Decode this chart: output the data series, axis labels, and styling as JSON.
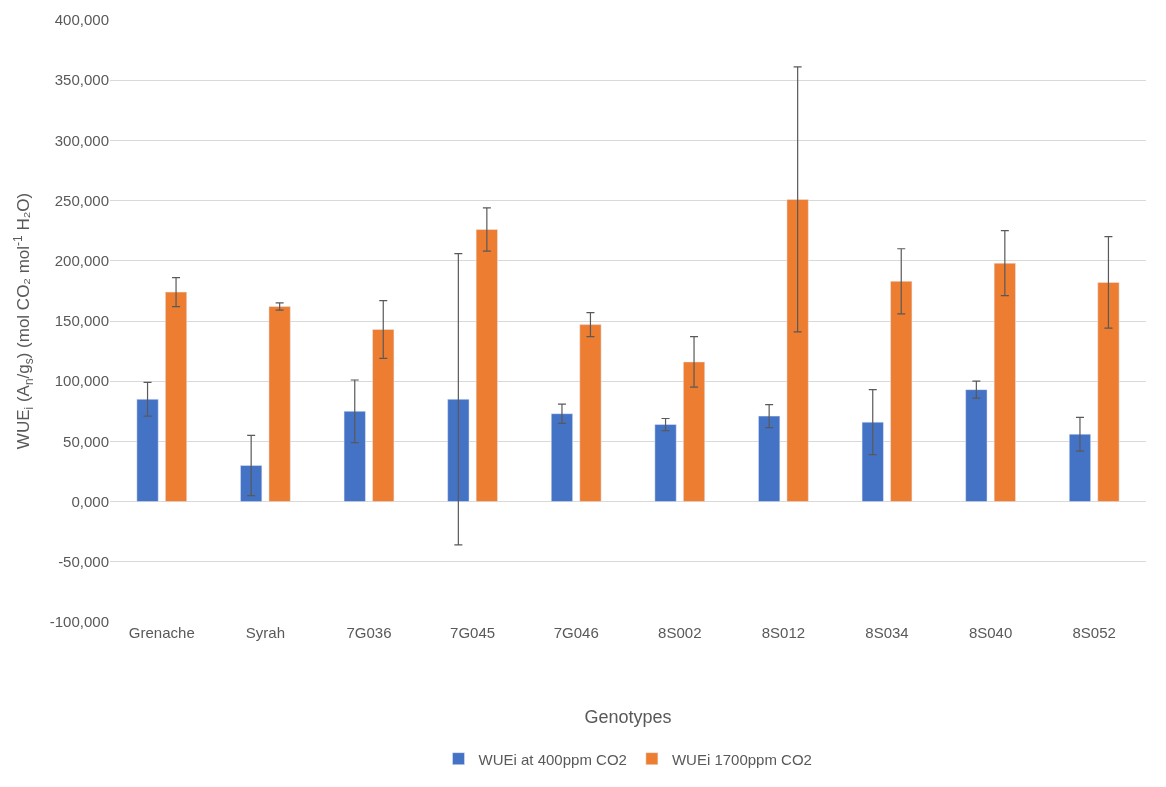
{
  "chart_data": {
    "type": "bar",
    "xlabel": "Genotypes",
    "ylabel": "WUE$_{i}$ (A$_{n}$/g$_{s}$) (mol CO₂ mol$^{-1}$ H₂O)",
    "categories": [
      "Grenache",
      "Syrah",
      "7G036",
      "7G045",
      "7G046",
      "8S002",
      "8S012",
      "8S034",
      "8S040",
      "8S052"
    ],
    "series": [
      {
        "name": "WUEi at 400ppm CO2",
        "color": "#4472c4",
        "values": [
          85000,
          30000,
          75000,
          85000,
          73000,
          64000,
          71000,
          66000,
          93000,
          56000
        ],
        "errors": [
          14000,
          25000,
          26000,
          121000,
          8000,
          5000,
          9500,
          27000,
          7000,
          14000
        ]
      },
      {
        "name": "WUEi 1700ppm CO2",
        "color": "#ed7d31",
        "values": [
          174000,
          162000,
          143000,
          226000,
          147000,
          116000,
          251000,
          183000,
          198000,
          182000
        ],
        "errors": [
          12000,
          3000,
          24000,
          18000,
          10000,
          21000,
          110000,
          27000,
          27000,
          38000
        ]
      }
    ],
    "ylim": [
      -100000,
      400000
    ],
    "yticks": [
      {
        "value": -100000,
        "label": "-100,000"
      },
      {
        "value": -50000,
        "label": "-50,000"
      },
      {
        "value": 0,
        "label": "0,000"
      },
      {
        "value": 50000,
        "label": "50,000"
      },
      {
        "value": 100000,
        "label": "100,000"
      },
      {
        "value": 150000,
        "label": "150,000"
      },
      {
        "value": 200000,
        "label": "200,000"
      },
      {
        "value": 250000,
        "label": "250,000"
      },
      {
        "value": 300000,
        "label": "300,000"
      },
      {
        "value": 350000,
        "label": "350,000"
      },
      {
        "value": 400000,
        "label": "400,000"
      }
    ],
    "grid": "y",
    "legend": "bottom"
  }
}
